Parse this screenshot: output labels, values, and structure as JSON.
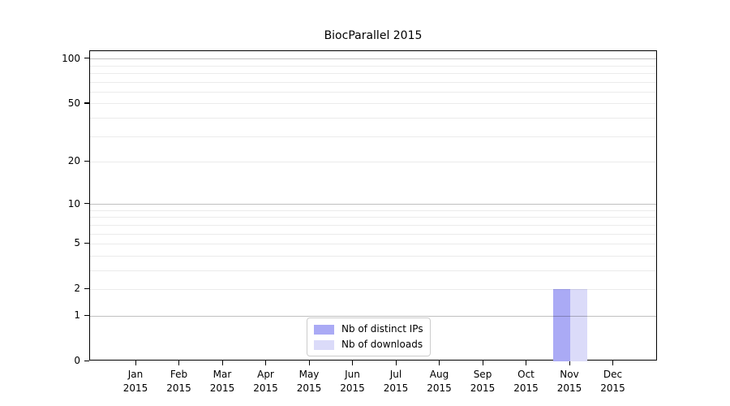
{
  "title": "BiocParallel 2015",
  "legend": {
    "items": [
      {
        "label": "Nb of distinct IPs",
        "color": "#aaaaf5"
      },
      {
        "label": "Nb of downloads",
        "color": "#dbdbf9"
      }
    ]
  },
  "axes": {
    "y_tick_labels": [
      "0",
      "1",
      "2",
      "5",
      "10",
      "20",
      "50",
      "100"
    ],
    "x_year": "2015",
    "x_months": [
      "Jan",
      "Feb",
      "Mar",
      "Apr",
      "May",
      "Jun",
      "Jul",
      "Aug",
      "Sep",
      "Oct",
      "Nov",
      "Dec"
    ]
  },
  "chart_data": {
    "type": "bar",
    "title": "BiocParallel 2015",
    "categories": [
      "Jan 2015",
      "Feb 2015",
      "Mar 2015",
      "Apr 2015",
      "May 2015",
      "Jun 2015",
      "Jul 2015",
      "Aug 2015",
      "Sep 2015",
      "Oct 2015",
      "Nov 2015",
      "Dec 2015"
    ],
    "series": [
      {
        "name": "Nb of distinct IPs",
        "color": "#aaaaf5",
        "values": [
          0,
          0,
          0,
          0,
          0,
          0,
          0,
          0,
          0,
          0,
          2,
          0
        ]
      },
      {
        "name": "Nb of downloads",
        "color": "#dbdbf9",
        "values": [
          0,
          0,
          0,
          0,
          0,
          0,
          0,
          0,
          0,
          0,
          2,
          0
        ]
      }
    ],
    "xlabel": "",
    "ylabel": "",
    "yscale": "log1p",
    "ylim": [
      0,
      113
    ],
    "yticks": [
      0,
      1,
      2,
      5,
      10,
      20,
      50,
      100
    ],
    "major_gridlines": [
      1,
      10,
      100
    ],
    "minor_gridlines": [
      2,
      3,
      4,
      5,
      6,
      7,
      8,
      9,
      20,
      30,
      40,
      50,
      60,
      70,
      80,
      90
    ],
    "grid": true,
    "legend_position": "lower center",
    "colors": {
      "major_grid": "#bfbfbf",
      "minor_grid": "#ebebeb",
      "spine": "#000000"
    }
  }
}
